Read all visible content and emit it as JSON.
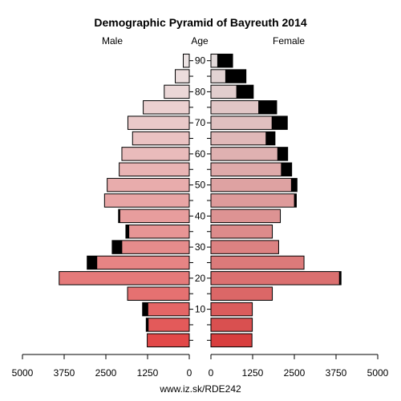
{
  "chart_data": {
    "type": "bar",
    "title": "Demographic Pyramid of Bayreuth 2014",
    "left_label": "Male",
    "center_label": "Age",
    "right_label": "Female",
    "source": "www.iz.sk/RDE242",
    "x_ticks_left": [
      "5000",
      "3750",
      "2500",
      "1250",
      "0"
    ],
    "x_ticks_right": [
      "0",
      "1250",
      "2500",
      "3750",
      "5000"
    ],
    "age_ticks": [
      "10",
      "20",
      "30",
      "40",
      "50",
      "60",
      "70",
      "80",
      "90"
    ],
    "xlim": [
      0,
      5000
    ],
    "categories": [
      "0-4",
      "5-9",
      "10-14",
      "15-19",
      "20-24",
      "25-29",
      "30-34",
      "35-39",
      "40-44",
      "45-49",
      "50-54",
      "55-59",
      "60-64",
      "65-69",
      "70-74",
      "75-79",
      "80-84",
      "85-89",
      "90+"
    ],
    "male_total": [
      1260,
      1290,
      1400,
      1850,
      3900,
      3060,
      2310,
      1900,
      2120,
      2540,
      2460,
      2100,
      2020,
      1700,
      1840,
      1380,
      750,
      420,
      180
    ],
    "male_excess": [
      0,
      70,
      170,
      0,
      0,
      300,
      300,
      100,
      50,
      0,
      0,
      0,
      0,
      0,
      0,
      0,
      0,
      0,
      0
    ],
    "female_total": [
      1230,
      1240,
      1240,
      1840,
      3900,
      2790,
      2030,
      1840,
      2080,
      2560,
      2580,
      2420,
      2300,
      1920,
      2290,
      1970,
      1270,
      1050,
      650
    ],
    "female_excess": [
      0,
      0,
      0,
      0,
      60,
      0,
      0,
      0,
      0,
      70,
      180,
      320,
      310,
      280,
      470,
      550,
      510,
      620,
      460
    ],
    "excess_color": "#000000",
    "grid": false
  }
}
